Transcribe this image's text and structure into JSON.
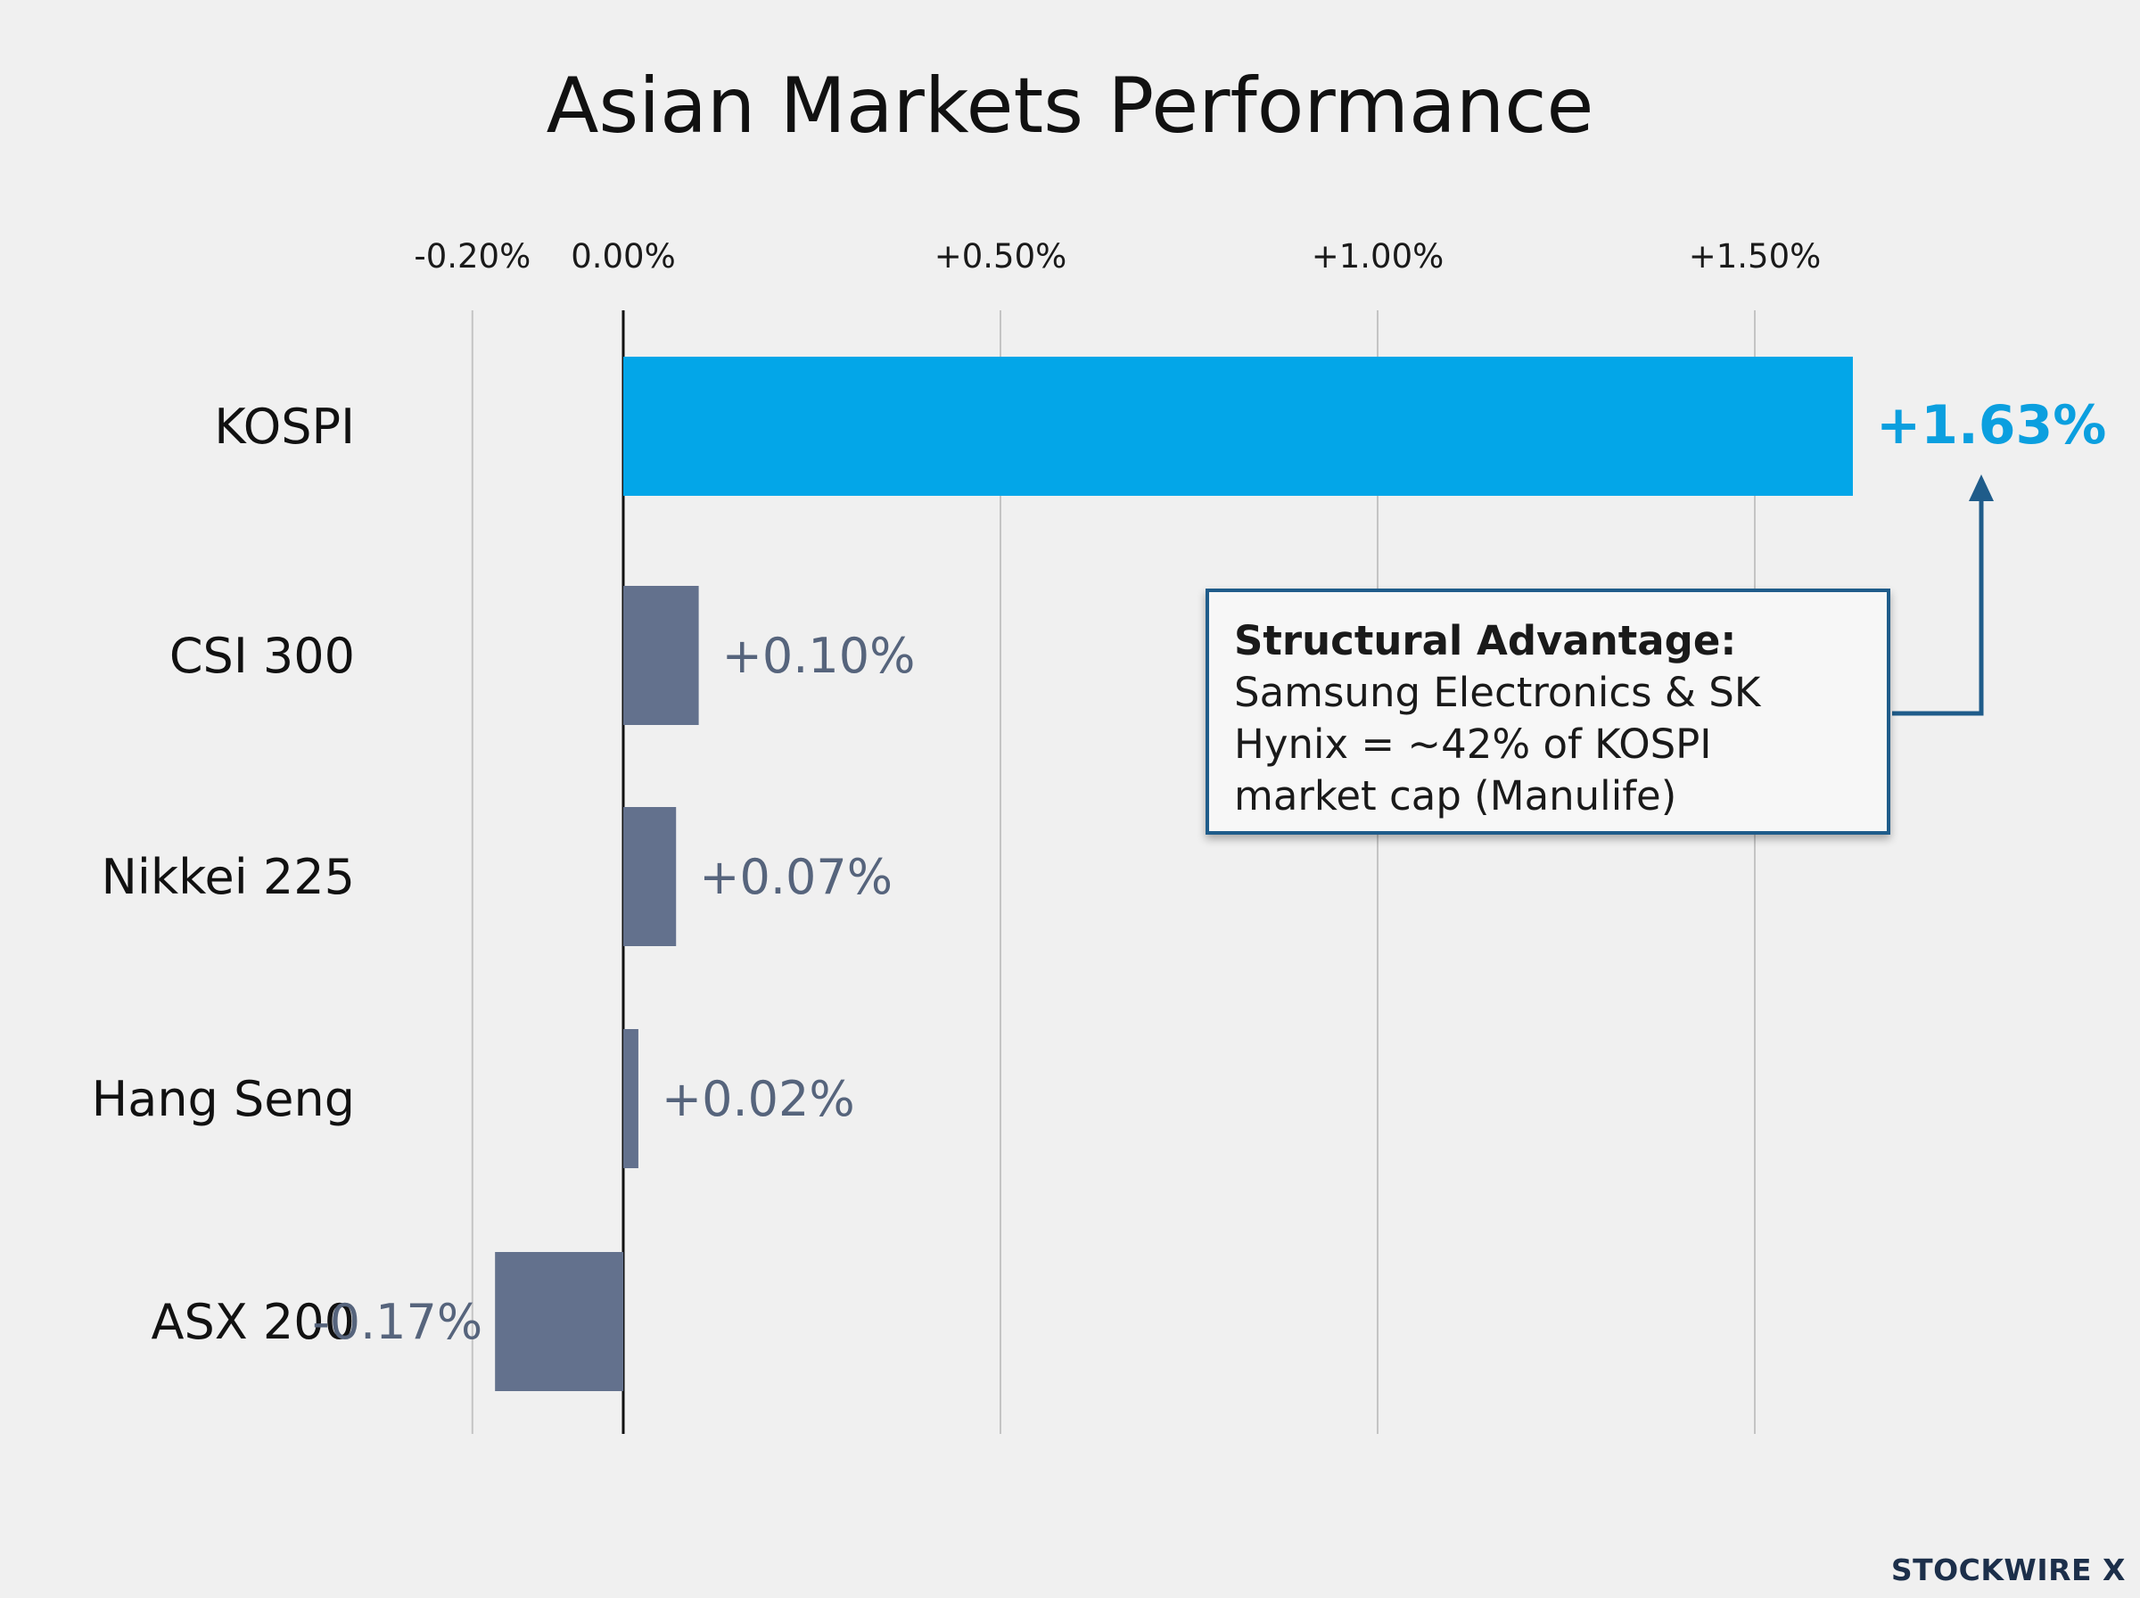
{
  "chart_data": {
    "type": "bar",
    "orientation": "horizontal",
    "title": "Asian Markets Performance",
    "xlabel": "",
    "ylabel": "",
    "xlim": [
      -0.3,
      1.9
    ],
    "x_ticks": [
      -0.2,
      0.0,
      0.5,
      1.0,
      1.5
    ],
    "x_tick_labels": [
      "-0.20%",
      "0.00%",
      "+0.50%",
      "+1.00%",
      "+1.50%"
    ],
    "grid": true,
    "categories": [
      "KOSPI",
      "CSI 300",
      "Nikkei 225",
      "Hang Seng",
      "ASX 200"
    ],
    "values": [
      1.63,
      0.1,
      0.07,
      0.02,
      -0.17
    ],
    "value_labels": [
      "+1.63%",
      "+0.10%",
      "+0.07%",
      "+0.02%",
      "-0.17%"
    ],
    "highlight_index": 0,
    "colors": {
      "highlight": "#03a6e8",
      "default_bar": "#63718d",
      "highlight_label": "#0b9fdf",
      "default_label": "#56647c",
      "grid": "#c4c4c4",
      "zero_line": "#111111"
    },
    "annotation": {
      "title": "Structural Advantage:",
      "text": "Samsung Electronics & SK Hynix = ~42% of KOSPI market cap (Manulife)",
      "target": "KOSPI",
      "border_color": "#1f5c8a"
    }
  },
  "brand": {
    "text": "STOCKWIRE X"
  }
}
